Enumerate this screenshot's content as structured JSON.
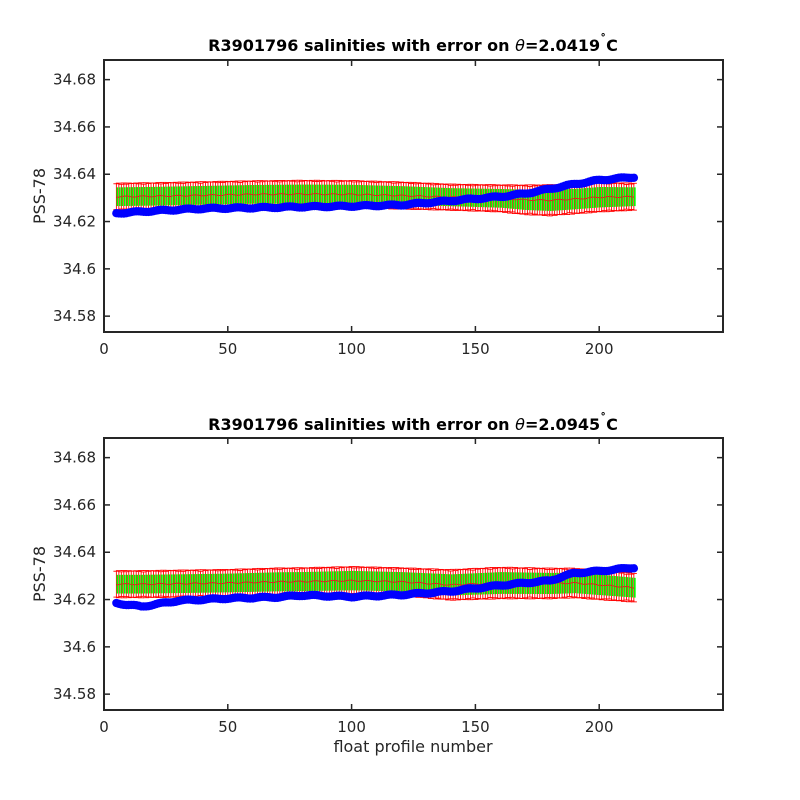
{
  "chart_data": [
    {
      "type": "scatter",
      "title": "R3901796 salinities with error on θ=2.0419˚C",
      "title_prefix": "R3901796 salinities with error on ",
      "title_theta": "θ",
      "title_value": "=2.0419",
      "title_degree": "˚",
      "title_unit": "C",
      "xlabel": "",
      "ylabel": "PSS-78",
      "xlim": [
        0,
        250
      ],
      "ylim": [
        34.5733,
        34.6883
      ],
      "xticks": [
        0,
        50,
        100,
        150,
        200
      ],
      "xtick_labels": [
        "0",
        "50",
        "100",
        "150",
        "200"
      ],
      "yticks": [
        34.58,
        34.6,
        34.62,
        34.64,
        34.66,
        34.68
      ],
      "ytick_labels": [
        "34.58",
        "34.6",
        "34.62",
        "34.64",
        "34.66",
        "34.68"
      ],
      "grid": false,
      "x_range": [
        5,
        214
      ],
      "series": [
        {
          "role": "float salinity",
          "color": "#0000ff",
          "marker": "circle",
          "x": [
            5,
            20,
            40,
            60,
            80,
            100,
            120,
            140,
            160,
            170,
            180,
            190,
            200,
            214
          ],
          "values": [
            34.6235,
            34.6245,
            34.6255,
            34.6258,
            34.6262,
            34.6265,
            34.627,
            34.6288,
            34.6305,
            34.6318,
            34.6338,
            34.6358,
            34.6375,
            34.6388
          ]
        },
        {
          "role": "mapped salinity",
          "color": "#00ff00",
          "x": [
            5,
            20,
            40,
            60,
            80,
            100,
            120,
            140,
            160,
            170,
            180,
            190,
            200,
            214
          ],
          "values": [
            34.6305,
            34.6307,
            34.6311,
            34.6315,
            34.6316,
            34.6315,
            34.631,
            34.6303,
            34.6298,
            34.6292,
            34.629,
            34.6295,
            34.6303,
            34.6305
          ]
        },
        {
          "role": "mapped salinity error",
          "color": "#ff0000",
          "x": [
            5,
            20,
            40,
            60,
            80,
            100,
            120,
            140,
            160,
            170,
            180,
            190,
            200,
            214
          ],
          "values": [
            0.0055,
            0.0055,
            0.0055,
            0.0055,
            0.0056,
            0.0056,
            0.0055,
            0.0053,
            0.0055,
            0.006,
            0.0063,
            0.006,
            0.006,
            0.0055
          ]
        }
      ]
    },
    {
      "type": "scatter",
      "title": "R3901796 salinities with error on θ=2.0945˚C",
      "title_prefix": "R3901796 salinities with error on ",
      "title_theta": "θ",
      "title_value": "=2.0945",
      "title_degree": "˚",
      "title_unit": "C",
      "xlabel": "float profile number",
      "ylabel": "PSS-78",
      "xlim": [
        0,
        250
      ],
      "ylim": [
        34.5733,
        34.6883
      ],
      "xticks": [
        0,
        50,
        100,
        150,
        200
      ],
      "xtick_labels": [
        "0",
        "50",
        "100",
        "150",
        "200"
      ],
      "yticks": [
        34.58,
        34.6,
        34.62,
        34.64,
        34.66,
        34.68
      ],
      "ytick_labels": [
        "34.58",
        "34.6",
        "34.62",
        "34.64",
        "34.66",
        "34.68"
      ],
      "grid": false,
      "x_range": [
        5,
        214
      ],
      "series": [
        {
          "role": "float salinity",
          "color": "#0000ff",
          "marker": "circle",
          "x": [
            5,
            15,
            30,
            50,
            70,
            80,
            100,
            120,
            140,
            160,
            180,
            190,
            200,
            214
          ],
          "values": [
            34.6185,
            34.617,
            34.6195,
            34.6205,
            34.621,
            34.6218,
            34.6212,
            34.622,
            34.6235,
            34.626,
            34.628,
            34.6312,
            34.632,
            34.6335
          ]
        },
        {
          "role": "mapped salinity",
          "color": "#00ff00",
          "x": [
            5,
            15,
            30,
            50,
            70,
            80,
            100,
            120,
            140,
            160,
            180,
            190,
            200,
            214
          ],
          "values": [
            34.6265,
            34.6265,
            34.6267,
            34.627,
            34.6275,
            34.6276,
            34.628,
            34.6275,
            34.6262,
            34.627,
            34.6268,
            34.627,
            34.6262,
            34.625
          ]
        },
        {
          "role": "mapped salinity error",
          "color": "#ff0000",
          "x": [
            5,
            15,
            30,
            50,
            70,
            80,
            100,
            120,
            140,
            160,
            180,
            190,
            200,
            214
          ],
          "values": [
            0.0055,
            0.0055,
            0.0055,
            0.0055,
            0.0056,
            0.0056,
            0.0057,
            0.0057,
            0.0062,
            0.0064,
            0.0062,
            0.006,
            0.006,
            0.0058
          ]
        }
      ]
    }
  ]
}
